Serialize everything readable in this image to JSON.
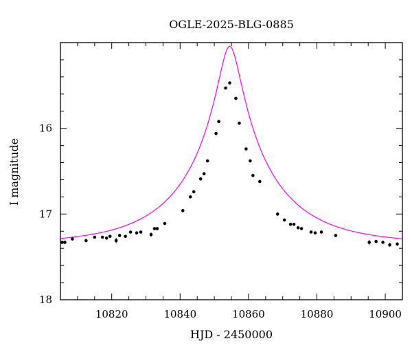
{
  "chart_data": {
    "type": "scatter",
    "title": "OGLE-2025-BLG-0885",
    "xlabel": "HJD - 2450000",
    "ylabel": "I magnitude",
    "xlim": [
      10805,
      10905
    ],
    "ylim": [
      18,
      15.0
    ],
    "y_inverted": true,
    "x_ticks": [
      10820,
      10840,
      10860,
      10880,
      10900
    ],
    "y_ticks": [
      16,
      17,
      18
    ],
    "x_tick_labels": [
      "10820",
      "10840",
      "10860",
      "10880",
      "10900"
    ],
    "y_tick_labels": [
      "16",
      "17",
      "18"
    ],
    "grid": false,
    "colors": {
      "points": "#000000",
      "model": "#ff00ff"
    },
    "series": [
      {
        "type": "scatter",
        "x": [
          10805.5,
          10806.3,
          10808.5,
          10812.5,
          10815.0,
          10817.3,
          10818.5,
          10819.5,
          10821.3,
          10822.3,
          10824.0,
          10825.5,
          10827.3,
          10828.5,
          10831.5,
          10832.5,
          10833.3,
          10835.5,
          10840.8,
          10843.0,
          10844.0,
          10846.0,
          10847.0,
          10848.0,
          10850.5,
          10851.3,
          10853.3,
          10854.5,
          10856.3,
          10857.3,
          10859.3,
          10860.5,
          10861.3,
          10863.3,
          10868.5,
          10870.5,
          10872.3,
          10873.3,
          10874.5,
          10875.5,
          10878.3,
          10879.5,
          10881.3,
          10885.5,
          10895.3,
          10897.3,
          10899.3,
          10901.3,
          10903.5
        ],
        "y": [
          17.33,
          17.33,
          17.29,
          17.31,
          17.27,
          17.27,
          17.28,
          17.26,
          17.31,
          17.25,
          17.26,
          17.21,
          17.22,
          17.21,
          17.24,
          17.17,
          17.17,
          17.11,
          16.96,
          16.8,
          16.74,
          16.59,
          16.53,
          16.38,
          16.06,
          15.92,
          15.53,
          15.47,
          15.65,
          15.94,
          16.24,
          16.38,
          16.55,
          16.62,
          17.0,
          17.07,
          17.12,
          17.12,
          17.16,
          17.17,
          17.21,
          17.22,
          17.21,
          17.25,
          17.33,
          17.32,
          17.33,
          17.36,
          17.35
        ],
        "err": [
          0.02,
          0.02,
          0.02,
          0.02,
          0.015,
          0.015,
          0.015,
          0.015,
          0.03,
          0.02,
          0.015,
          0.015,
          0.02,
          0.015,
          0.025,
          0.015,
          0.02,
          0.015,
          0.02,
          0.015,
          0.015,
          0.015,
          0.015,
          0.015,
          0.015,
          0.015,
          0.015,
          0.015,
          0.015,
          0.015,
          0.015,
          0.015,
          0.015,
          0.015,
          0.02,
          0.015,
          0.015,
          0.015,
          0.015,
          0.015,
          0.015,
          0.015,
          0.015,
          0.015,
          0.03,
          0.02,
          0.015,
          0.02,
          0.02
        ]
      },
      {
        "type": "line",
        "model": {
          "t0": 10854.5,
          "tE": 25,
          "u0": 0.12,
          "I_base": 17.35
        }
      }
    ]
  }
}
